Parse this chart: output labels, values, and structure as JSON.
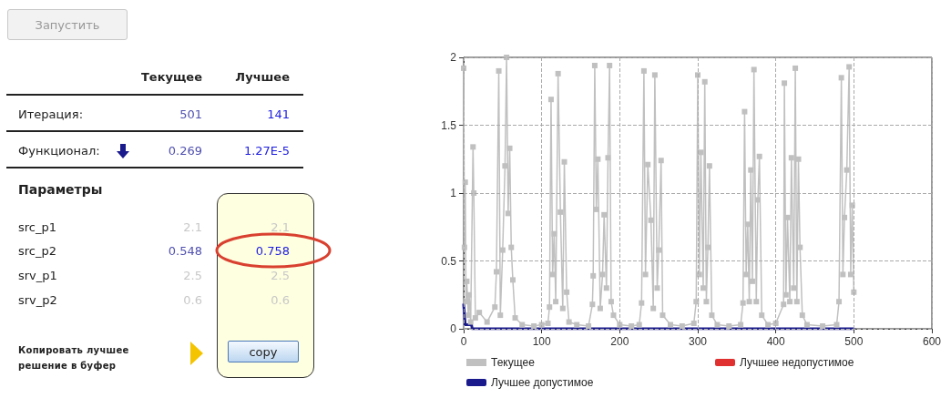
{
  "chart_data": [
    {
      "type": "other",
      "annotations": [
        "Запустить",
        "Текущее",
        "Лучшее",
        "Итерация:",
        "501",
        "141",
        "Функционал:",
        "0.269",
        "1.27E-5",
        "Параметры",
        "src_p1",
        "2.1",
        "2.1",
        "src_p2",
        "0.548",
        "0.758",
        "srv_p1",
        "2.5",
        "2.5",
        "srv_p2",
        "0.6",
        "0.6",
        "Копировать лучшее решение в буфер",
        "copy"
      ]
    },
    {
      "type": "line",
      "xlim": [
        0,
        600
      ],
      "xticks": [
        0,
        100,
        200,
        300,
        400,
        500,
        600
      ],
      "ylim": [
        0,
        2
      ],
      "yticks": [
        0,
        0.5,
        1,
        1.5,
        2
      ],
      "grid": true,
      "legend": "bottom",
      "line_style": "solid",
      "series": [
        {
          "name": "Текущее",
          "color": "#c0c0c0",
          "marker": "square",
          "x": [
            0,
            1,
            2,
            3,
            4,
            6,
            7,
            9,
            12,
            13,
            15,
            20,
            30,
            40,
            42,
            45,
            47,
            50,
            53,
            55,
            57,
            59,
            61,
            63,
            66,
            75,
            90,
            100,
            108,
            110,
            112,
            114,
            116,
            118,
            121,
            124,
            127,
            129,
            132,
            135,
            145,
            160,
            165,
            166,
            168,
            170,
            172,
            175,
            178,
            180,
            183,
            185,
            187,
            189,
            192,
            200,
            215,
            225,
            228,
            231,
            233,
            236,
            240,
            243,
            245,
            248,
            250,
            253,
            255,
            265,
            280,
            295,
            298,
            300,
            302,
            304,
            307,
            309,
            311,
            313,
            315,
            318,
            325,
            340,
            355,
            358,
            360,
            362,
            364,
            366,
            368,
            370,
            372,
            375,
            377,
            379,
            382,
            390,
            400,
            410,
            411,
            413,
            415,
            418,
            420,
            423,
            425,
            427,
            429,
            431,
            434,
            440,
            460,
            478,
            481,
            484,
            486,
            488,
            491,
            494,
            496,
            498,
            500
          ],
          "values": [
            1.92,
            0.6,
            1.08,
            0.2,
            0.35,
            0.1,
            0.25,
            0.05,
            1.34,
            1.0,
            0.08,
            0.12,
            0.05,
            0.16,
            0.42,
            1.9,
            0.1,
            0.58,
            1.2,
            2.0,
            0.85,
            1.33,
            0.6,
            0.36,
            0.08,
            0.03,
            0.02,
            0.03,
            0.04,
            0.16,
            1.69,
            0.4,
            0.7,
            0.2,
            1.88,
            0.86,
            0.15,
            1.23,
            0.27,
            0.05,
            0.03,
            0.02,
            0.18,
            0.39,
            1.94,
            0.88,
            1.25,
            0.15,
            0.4,
            0.84,
            0.3,
            1.26,
            1.94,
            0.2,
            0.1,
            0.03,
            0.02,
            0.03,
            0.19,
            1.9,
            0.4,
            1.21,
            0.8,
            0.15,
            1.87,
            0.3,
            0.58,
            1.24,
            0.1,
            0.03,
            0.02,
            0.04,
            0.2,
            1.87,
            0.4,
            1.3,
            0.3,
            1.82,
            0.2,
            0.6,
            1.2,
            0.1,
            0.03,
            0.02,
            0.03,
            0.19,
            1.6,
            0.4,
            0.77,
            0.2,
            1.17,
            0.35,
            1.91,
            0.2,
            0.95,
            1.27,
            0.1,
            0.03,
            0.04,
            0.18,
            1.81,
            0.25,
            0.82,
            0.2,
            1.26,
            0.3,
            1.92,
            0.2,
            1.25,
            0.6,
            0.1,
            0.03,
            0.02,
            0.03,
            0.2,
            1.85,
            0.4,
            0.82,
            1.17,
            1.93,
            0.4,
            0.91,
            0.27
          ]
        },
        {
          "name": "Лучшее недопустимое",
          "color": "#e03030",
          "marker": "none"
        },
        {
          "name": "Лучшее допустимое",
          "color": "#1a1a8c",
          "marker": "none",
          "x": [
            0,
            2,
            10,
            11,
            500
          ],
          "values": [
            0.18,
            0.03,
            0.03,
            0,
            0
          ]
        }
      ]
    }
  ]
}
